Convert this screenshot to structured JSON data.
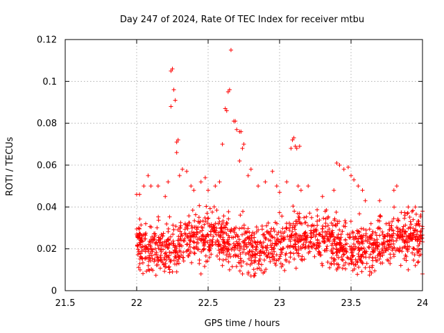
{
  "chart_data": {
    "type": "scatter",
    "title": "Day 247 of 2024, Rate Of TEC Index for receiver mtbu",
    "xlabel": "GPS time / hours",
    "ylabel": "ROTI / TECUs",
    "xlim": [
      21.5,
      24
    ],
    "ylim": [
      0,
      0.12
    ],
    "x_ticks": [
      21.5,
      22,
      22.5,
      23,
      23.5,
      24
    ],
    "x_tick_labels": [
      "21.5",
      "22",
      "22.5",
      "23",
      "23.5",
      "24"
    ],
    "y_ticks": [
      0,
      0.02,
      0.04,
      0.06,
      0.08,
      0.1,
      0.12
    ],
    "y_tick_labels": [
      "0",
      "0.02",
      "0.04",
      "0.06",
      "0.08",
      "0.1",
      "0.12"
    ],
    "grid": true,
    "marker": "+",
    "color": "#ff0000",
    "series": [
      {
        "name": "ROTI",
        "points": [
          [
            22.0,
            0.046
          ],
          [
            22.02,
            0.046
          ],
          [
            22.05,
            0.05
          ],
          [
            22.08,
            0.055
          ],
          [
            22.1,
            0.05
          ],
          [
            22.15,
            0.05
          ],
          [
            22.2,
            0.045
          ],
          [
            22.22,
            0.052
          ],
          [
            22.24,
            0.105
          ],
          [
            22.25,
            0.106
          ],
          [
            22.24,
            0.088
          ],
          [
            22.26,
            0.096
          ],
          [
            22.27,
            0.091
          ],
          [
            22.28,
            0.071
          ],
          [
            22.29,
            0.072
          ],
          [
            22.28,
            0.066
          ],
          [
            22.3,
            0.055
          ],
          [
            22.32,
            0.058
          ],
          [
            22.35,
            0.057
          ],
          [
            22.38,
            0.05
          ],
          [
            22.4,
            0.048
          ],
          [
            22.45,
            0.052
          ],
          [
            22.48,
            0.054
          ],
          [
            22.5,
            0.048
          ],
          [
            22.55,
            0.05
          ],
          [
            22.58,
            0.052
          ],
          [
            22.6,
            0.07
          ],
          [
            22.62,
            0.087
          ],
          [
            22.63,
            0.086
          ],
          [
            22.64,
            0.095
          ],
          [
            22.65,
            0.096
          ],
          [
            22.66,
            0.115
          ],
          [
            22.68,
            0.081
          ],
          [
            22.69,
            0.081
          ],
          [
            22.7,
            0.077
          ],
          [
            22.72,
            0.076
          ],
          [
            22.73,
            0.076
          ],
          [
            22.74,
            0.068
          ],
          [
            22.75,
            0.07
          ],
          [
            22.72,
            0.062
          ],
          [
            22.78,
            0.055
          ],
          [
            22.8,
            0.058
          ],
          [
            22.85,
            0.05
          ],
          [
            22.9,
            0.052
          ],
          [
            22.95,
            0.057
          ],
          [
            22.98,
            0.05
          ],
          [
            23.0,
            0.047
          ],
          [
            23.05,
            0.052
          ],
          [
            23.08,
            0.068
          ],
          [
            23.09,
            0.072
          ],
          [
            23.1,
            0.073
          ],
          [
            23.11,
            0.069
          ],
          [
            23.12,
            0.068
          ],
          [
            23.14,
            0.069
          ],
          [
            23.13,
            0.05
          ],
          [
            23.15,
            0.048
          ],
          [
            23.2,
            0.05
          ],
          [
            23.3,
            0.045
          ],
          [
            23.38,
            0.048
          ],
          [
            23.4,
            0.061
          ],
          [
            23.42,
            0.06
          ],
          [
            23.45,
            0.058
          ],
          [
            23.48,
            0.059
          ],
          [
            23.5,
            0.055
          ],
          [
            23.52,
            0.053
          ],
          [
            23.55,
            0.05
          ],
          [
            23.58,
            0.048
          ],
          [
            23.6,
            0.043
          ],
          [
            23.7,
            0.043
          ],
          [
            23.8,
            0.048
          ],
          [
            23.82,
            0.05
          ],
          [
            23.9,
            0.04
          ],
          [
            23.95,
            0.04
          ],
          [
            24.0,
            0.038
          ],
          [
            23.9,
            0.01
          ],
          [
            23.95,
            0.012
          ],
          [
            24.0,
            0.008
          ],
          [
            22.45,
            0.008
          ],
          [
            22.8,
            0.007
          ],
          [
            22.78,
            0.008
          ],
          [
            22.82,
            0.007
          ],
          [
            22.6,
            0.012
          ],
          [
            22.65,
            0.01
          ],
          [
            22.25,
            0.009
          ],
          [
            23.35,
            0.011
          ],
          [
            23.4,
            0.01
          ],
          [
            23.3,
            0.012
          ],
          [
            23.6,
            0.011
          ],
          [
            23.65,
            0.012
          ]
        ]
      }
    ],
    "dense_band": {
      "x_range": [
        22.0,
        24.0
      ],
      "y_center": 0.023,
      "y_spread": 0.012,
      "count": 1500
    }
  }
}
